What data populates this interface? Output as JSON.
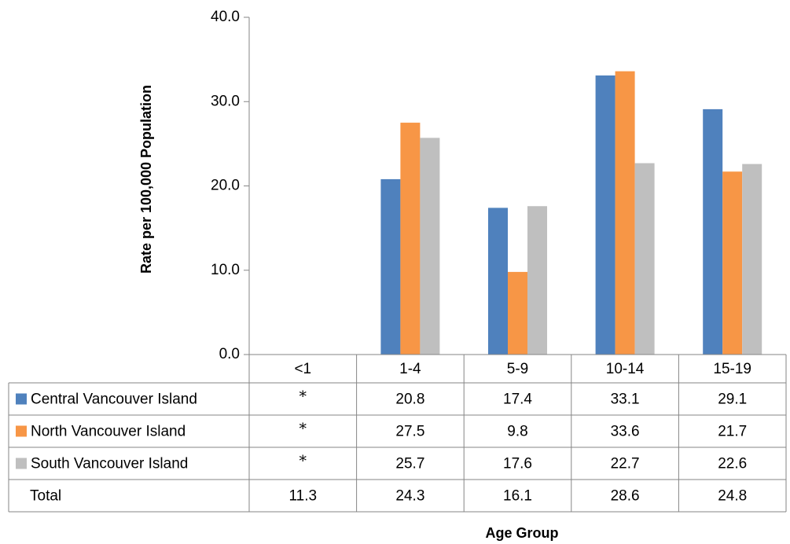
{
  "chart_data": {
    "type": "bar",
    "title": "",
    "xlabel": "Age Group",
    "ylabel": "Rate per 100,000 Population",
    "ylim": [
      0,
      40
    ],
    "yticks": [
      "0.0",
      "10.0",
      "20.0",
      "30.0",
      "40.0"
    ],
    "grid": false,
    "legend": "data-table-left",
    "categories": [
      "<1",
      "1-4",
      "5-9",
      "10-14",
      "15-19"
    ],
    "series": [
      {
        "name": "Central Vancouver Island",
        "color": "#4F81BD",
        "values": [
          null,
          20.8,
          17.4,
          33.1,
          29.1
        ],
        "labels": [
          "*",
          "20.8",
          "17.4",
          "33.1",
          "29.1"
        ]
      },
      {
        "name": "North Vancouver Island",
        "color": "#F79646",
        "values": [
          null,
          27.5,
          9.8,
          33.6,
          21.7
        ],
        "labels": [
          "*",
          "27.5",
          "9.8",
          "33.6",
          "21.7"
        ]
      },
      {
        "name": "South Vancouver Island",
        "color": "#BFBFBF",
        "values": [
          null,
          25.7,
          17.6,
          22.7,
          22.6
        ],
        "labels": [
          "*",
          "25.7",
          "17.6",
          "22.7",
          "22.6"
        ]
      }
    ],
    "table_rows": [
      {
        "name": "Total",
        "labels": [
          "11.3",
          "24.3",
          "16.1",
          "28.6",
          "24.8"
        ]
      }
    ]
  }
}
